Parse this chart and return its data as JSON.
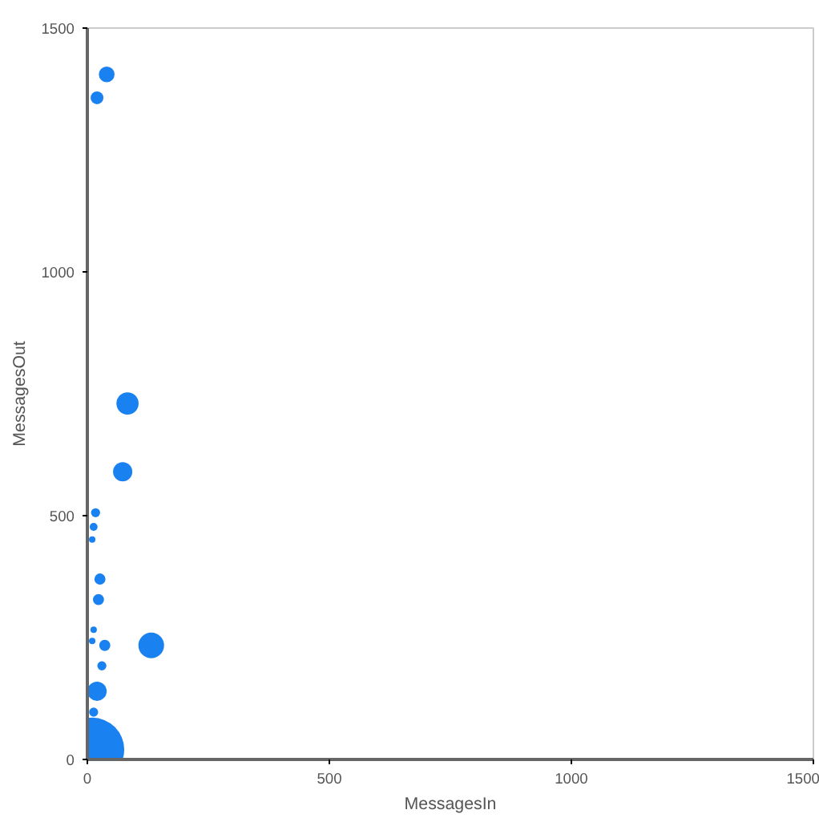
{
  "chart_data": {
    "type": "bubble",
    "xlabel": "MessagesIn",
    "ylabel": "MessagesOut",
    "x": [
      40,
      20,
      83,
      73,
      132,
      17,
      13,
      10,
      26,
      23,
      36,
      30,
      13,
      10,
      20,
      13,
      10
    ],
    "series": [
      {
        "color": "#1a82f0",
        "values": [
          1405,
          1357,
          730,
          590,
          234,
          506,
          477,
          451,
          370,
          328,
          234,
          192,
          266,
          243,
          140,
          97,
          20
        ],
        "sizes": [
          0.06,
          0.04,
          0.12,
          0.09,
          0.16,
          0.02,
          0.015,
          0.01,
          0.03,
          0.03,
          0.03,
          0.02,
          0.01,
          0.01,
          0.09,
          0.02,
          1
        ]
      }
    ],
    "xlim": [
      0,
      1500
    ],
    "ylim": [
      0,
      1500
    ],
    "xticks": [
      0,
      500,
      1000,
      1500
    ],
    "yticks": [
      0,
      500,
      1000,
      1500
    ],
    "grid": false
  }
}
